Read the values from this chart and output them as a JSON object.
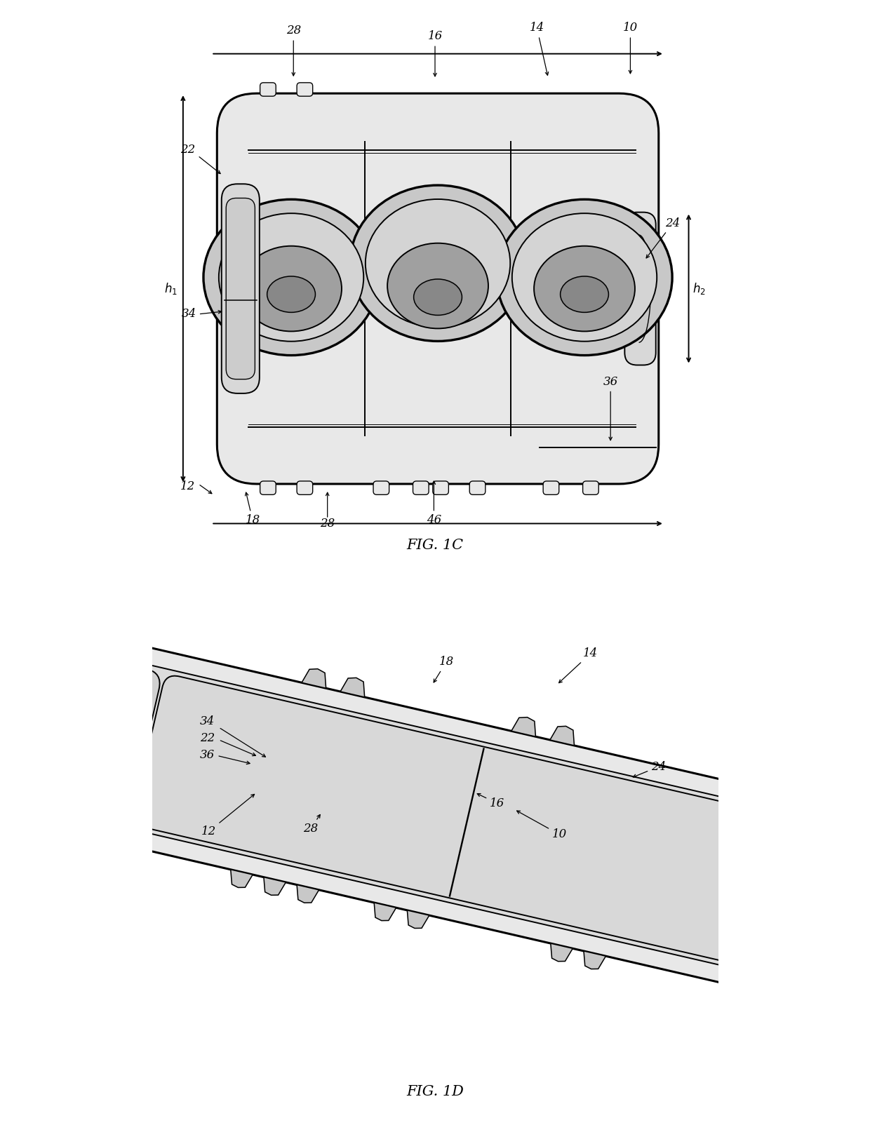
{
  "fig_width": 12.4,
  "fig_height": 16.14,
  "bg_color": "#ffffff",
  "line_color": "#000000",
  "lw": 1.4,
  "tlw": 2.2,
  "fig1c_title": "FIG. 1C",
  "fig1d_title": "FIG. 1D",
  "gray_light": "#e8e8e8",
  "gray_mid": "#c8c8c8",
  "gray_dark": "#a0a0a0",
  "gray_fill": "#d4d4d4"
}
